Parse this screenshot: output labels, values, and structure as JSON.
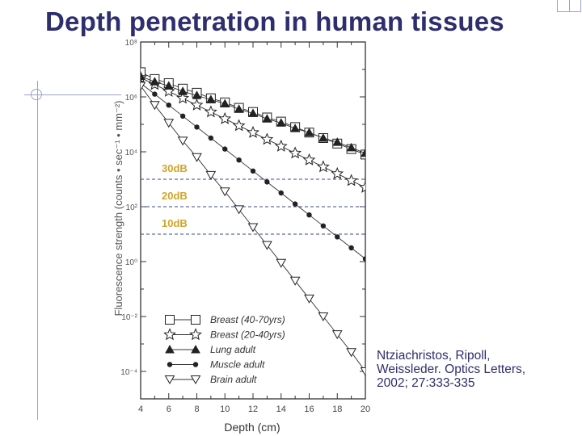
{
  "slide": {
    "title": "Depth penetration in human tissues",
    "citation": [
      "Ntziachristos, Ripoll,",
      "Weissleder. Optics Letters,",
      "2002; 27:333-335"
    ]
  },
  "chart_data": {
    "type": "scatter",
    "title": "",
    "xlabel": "Depth (cm)",
    "ylabel": "Fluorescence strength (counts • sec⁻¹ • mm⁻²)",
    "xlim": [
      4,
      20
    ],
    "ylim": [
      -5,
      8
    ],
    "yscale": "log",
    "x_ticks": [
      4,
      6,
      8,
      10,
      12,
      14,
      16,
      18,
      20
    ],
    "y_ticks": [
      {
        "exp": 8,
        "label": "10⁸"
      },
      {
        "exp": 6,
        "label": "10⁶"
      },
      {
        "exp": 4,
        "label": "10⁴"
      },
      {
        "exp": 2,
        "label": "10²"
      },
      {
        "exp": 0,
        "label": "10⁰"
      },
      {
        "exp": -2,
        "label": "10⁻²"
      },
      {
        "exp": -4,
        "label": "10⁻⁴"
      }
    ],
    "grid": false,
    "legend_position": "bottom-left",
    "series": [
      {
        "name": "Breast (40-70yrs)",
        "marker": "square",
        "x": [
          4,
          5,
          6,
          7,
          8,
          9,
          10,
          11,
          12,
          13,
          14,
          15,
          16,
          17,
          18,
          19,
          20
        ],
        "log_y": [
          6.9,
          6.65,
          6.5,
          6.3,
          6.15,
          5.95,
          5.8,
          5.6,
          5.45,
          5.25,
          5.1,
          4.9,
          4.7,
          4.5,
          4.3,
          4.1,
          3.9
        ]
      },
      {
        "name": "Breast (20-40yrs)",
        "marker": "star",
        "x": [
          4,
          5,
          6,
          7,
          8,
          9,
          10,
          11,
          12,
          13,
          14,
          15,
          16,
          17,
          18,
          19,
          20
        ],
        "log_y": [
          6.7,
          6.45,
          6.2,
          5.95,
          5.7,
          5.45,
          5.2,
          4.95,
          4.7,
          4.45,
          4.2,
          3.95,
          3.7,
          3.45,
          3.2,
          2.95,
          2.7
        ]
      },
      {
        "name": "Lung adult",
        "marker": "filled-triangle",
        "x": [
          4,
          5,
          6,
          7,
          8,
          9,
          10,
          11,
          12,
          13,
          14,
          15,
          16,
          17,
          18,
          19,
          20
        ],
        "log_y": [
          6.75,
          6.55,
          6.4,
          6.2,
          6.05,
          5.9,
          5.75,
          5.55,
          5.4,
          5.2,
          5.05,
          4.85,
          4.7,
          4.5,
          4.35,
          4.15,
          3.95
        ]
      },
      {
        "name": "Muscle adult",
        "marker": "filled-circle",
        "x": [
          4,
          5,
          6,
          7,
          8,
          9,
          10,
          11,
          12,
          13,
          14,
          15,
          16,
          17,
          18,
          19,
          20
        ],
        "log_y": [
          6.5,
          6.1,
          5.7,
          5.3,
          4.9,
          4.5,
          4.1,
          3.7,
          3.3,
          2.9,
          2.5,
          2.1,
          1.7,
          1.3,
          0.9,
          0.5,
          0.1
        ]
      },
      {
        "name": "Brain adult",
        "marker": "triangle-down",
        "x": [
          4,
          5,
          6,
          7,
          8,
          9,
          10,
          11,
          12,
          13,
          14,
          15,
          16,
          17,
          18,
          19,
          20
        ],
        "log_y": [
          6.4,
          5.7,
          5.05,
          4.4,
          3.8,
          3.15,
          2.55,
          1.9,
          1.25,
          0.6,
          -0.05,
          -0.7,
          -1.35,
          -2.0,
          -2.65,
          -3.3,
          -4.0
        ]
      }
    ],
    "annotations": [
      {
        "text": "30dB",
        "line_log_y": 3.0
      },
      {
        "text": "20dB",
        "line_log_y": 2.0
      },
      {
        "text": "10dB",
        "line_log_y": 1.0
      }
    ]
  }
}
